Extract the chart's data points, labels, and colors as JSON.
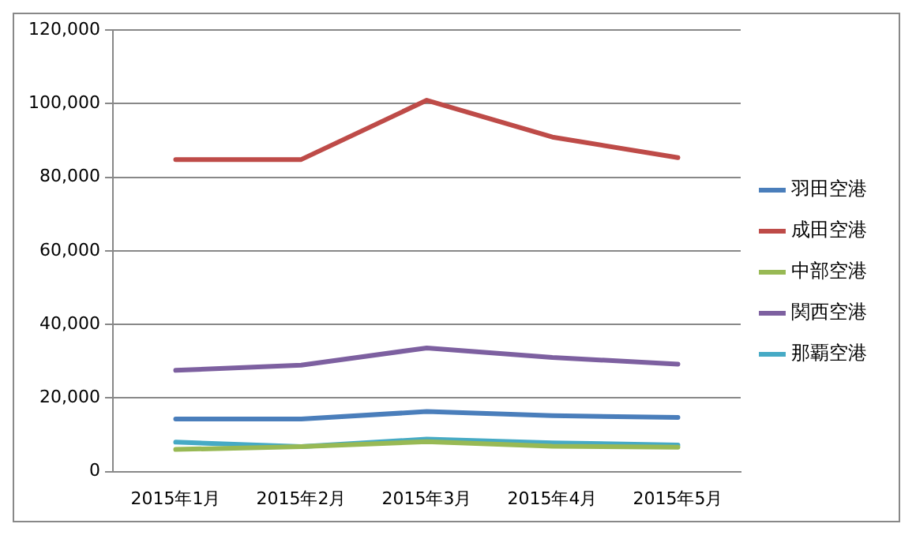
{
  "chart_data": {
    "type": "line",
    "categories": [
      "2015年1月",
      "2015年2月",
      "2015年3月",
      "2015年4月",
      "2015年5月"
    ],
    "series": [
      {
        "name": "羽田空港",
        "color": "#4a7ebb",
        "values": [
          14300,
          14300,
          16300,
          15200,
          14700
        ]
      },
      {
        "name": "成田空港",
        "color": "#be4b48",
        "values": [
          84800,
          84800,
          100900,
          90900,
          85300
        ]
      },
      {
        "name": "中部空港",
        "color": "#98b954",
        "values": [
          6000,
          6800,
          8100,
          6900,
          6600
        ]
      },
      {
        "name": "関西空港",
        "color": "#7d60a0",
        "values": [
          27500,
          28900,
          33600,
          31000,
          29200
        ]
      },
      {
        "name": "那覇空港",
        "color": "#46aac5",
        "values": [
          8000,
          6800,
          8800,
          7800,
          7200
        ]
      }
    ],
    "ylim": [
      0,
      120000
    ],
    "yticks": [
      0,
      {
        "value": 20000,
        "label": "20,000"
      },
      {
        "value": 40000,
        "label": "40,000"
      },
      {
        "value": 60000,
        "label": "60,000"
      },
      {
        "value": 80000,
        "label": "80,000"
      },
      {
        "value": 100000,
        "label": "100,000"
      },
      {
        "value": 120000,
        "label": "120,000"
      }
    ],
    "grid": "y",
    "legend": "right",
    "marker": "none",
    "line_style": "solid"
  }
}
